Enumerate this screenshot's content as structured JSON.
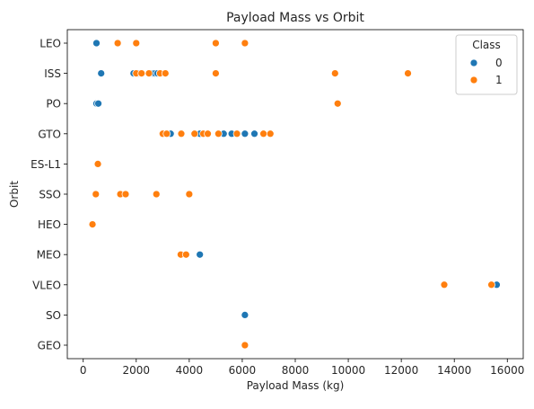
{
  "chart_data": {
    "type": "scatter",
    "title": "Payload Mass vs Orbit",
    "xlabel": "Payload Mass (kg)",
    "ylabel": "Orbit",
    "xlim": [
      -600,
      16600
    ],
    "xticks": [
      0,
      2000,
      4000,
      6000,
      8000,
      10000,
      12000,
      14000,
      16000
    ],
    "categories": [
      "LEO",
      "ISS",
      "PO",
      "GTO",
      "ES-L1",
      "SSO",
      "HEO",
      "MEO",
      "VLEO",
      "SO",
      "GEO"
    ],
    "grid": false,
    "legend": {
      "title": "Class",
      "placement": "top-right"
    },
    "series": [
      {
        "name": "0",
        "color": "#1f77b4",
        "points": [
          {
            "x": 500,
            "y": "LEO"
          },
          {
            "x": 677,
            "y": "ISS"
          },
          {
            "x": 1900,
            "y": "ISS"
          },
          {
            "x": 2100,
            "y": "ISS"
          },
          {
            "x": 2600,
            "y": "ISS"
          },
          {
            "x": 2700,
            "y": "ISS"
          },
          {
            "x": 2800,
            "y": "ISS"
          },
          {
            "x": 500,
            "y": "PO"
          },
          {
            "x": 570,
            "y": "PO"
          },
          {
            "x": 3300,
            "y": "GTO"
          },
          {
            "x": 3700,
            "y": "GTO"
          },
          {
            "x": 4400,
            "y": "GTO"
          },
          {
            "x": 5300,
            "y": "GTO"
          },
          {
            "x": 5600,
            "y": "GTO"
          },
          {
            "x": 6100,
            "y": "GTO"
          },
          {
            "x": 6460,
            "y": "GTO"
          },
          {
            "x": 4400,
            "y": "MEO"
          },
          {
            "x": 15600,
            "y": "VLEO"
          },
          {
            "x": 6100,
            "y": "SO"
          }
        ]
      },
      {
        "name": "1",
        "color": "#ff7f0e",
        "points": [
          {
            "x": 1300,
            "y": "LEO"
          },
          {
            "x": 2000,
            "y": "LEO"
          },
          {
            "x": 5000,
            "y": "LEO"
          },
          {
            "x": 6100,
            "y": "LEO"
          },
          {
            "x": 2000,
            "y": "ISS"
          },
          {
            "x": 2200,
            "y": "ISS"
          },
          {
            "x": 2480,
            "y": "ISS"
          },
          {
            "x": 2900,
            "y": "ISS"
          },
          {
            "x": 3100,
            "y": "ISS"
          },
          {
            "x": 5000,
            "y": "ISS"
          },
          {
            "x": 9500,
            "y": "ISS"
          },
          {
            "x": 12250,
            "y": "ISS"
          },
          {
            "x": 9600,
            "y": "PO"
          },
          {
            "x": 3000,
            "y": "GTO"
          },
          {
            "x": 3150,
            "y": "GTO"
          },
          {
            "x": 3700,
            "y": "GTO"
          },
          {
            "x": 4200,
            "y": "GTO"
          },
          {
            "x": 4530,
            "y": "GTO"
          },
          {
            "x": 4700,
            "y": "GTO"
          },
          {
            "x": 5100,
            "y": "GTO"
          },
          {
            "x": 5800,
            "y": "GTO"
          },
          {
            "x": 6800,
            "y": "GTO"
          },
          {
            "x": 7060,
            "y": "GTO"
          },
          {
            "x": 553,
            "y": "ES-L1"
          },
          {
            "x": 475,
            "y": "SSO"
          },
          {
            "x": 1400,
            "y": "SSO"
          },
          {
            "x": 1600,
            "y": "SSO"
          },
          {
            "x": 2760,
            "y": "SSO"
          },
          {
            "x": 4000,
            "y": "SSO"
          },
          {
            "x": 350,
            "y": "HEO"
          },
          {
            "x": 3680,
            "y": "MEO"
          },
          {
            "x": 3880,
            "y": "MEO"
          },
          {
            "x": 13620,
            "y": "VLEO"
          },
          {
            "x": 15400,
            "y": "VLEO"
          },
          {
            "x": 6100,
            "y": "GEO"
          }
        ]
      }
    ]
  }
}
